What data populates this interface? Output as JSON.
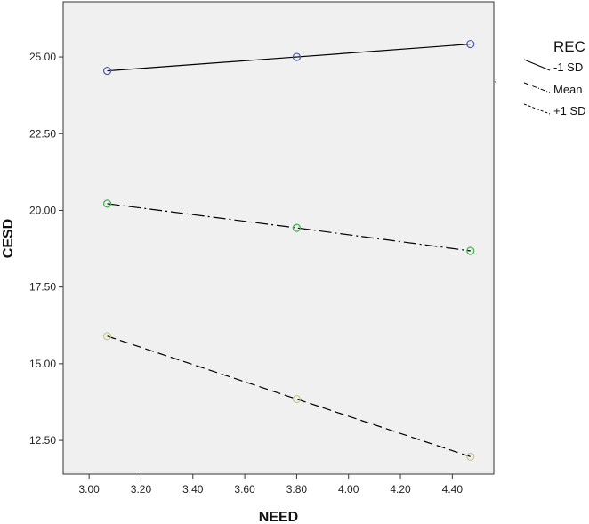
{
  "chart_data": {
    "type": "line",
    "xlabel": "NEED",
    "ylabel": "CESD",
    "xlim": [
      2.9,
      4.56
    ],
    "ylim": [
      11.4,
      26.8
    ],
    "x_ticks": [
      "3.00",
      "3.20",
      "3.40",
      "3.60",
      "3.80",
      "4.00",
      "4.20",
      "4.40"
    ],
    "y_ticks": [
      "12.50",
      "15.00",
      "17.50",
      "20.00",
      "22.50",
      "25.00"
    ],
    "legend_title": "REC",
    "legend_placement": "right",
    "background_color": "#f0f0f0",
    "series": [
      {
        "name": "-1 SD",
        "style": "solid",
        "line_color": "#000000",
        "marker_color": "#4a5aa8",
        "x": [
          3.07,
          3.8,
          4.47
        ],
        "values": [
          24.55,
          25.0,
          25.42
        ]
      },
      {
        "name": "Mean",
        "style": "dashdot",
        "line_color": "#000000",
        "marker_color": "#3cb34a",
        "x": [
          3.07,
          3.8,
          4.47
        ],
        "values": [
          20.22,
          19.43,
          18.68
        ]
      },
      {
        "name": "+1 SD",
        "style": "dashed",
        "line_color": "#000000",
        "marker_color": "#c8c890",
        "x": [
          3.07,
          3.8,
          4.47
        ],
        "values": [
          15.9,
          13.85,
          11.97
        ]
      }
    ]
  }
}
